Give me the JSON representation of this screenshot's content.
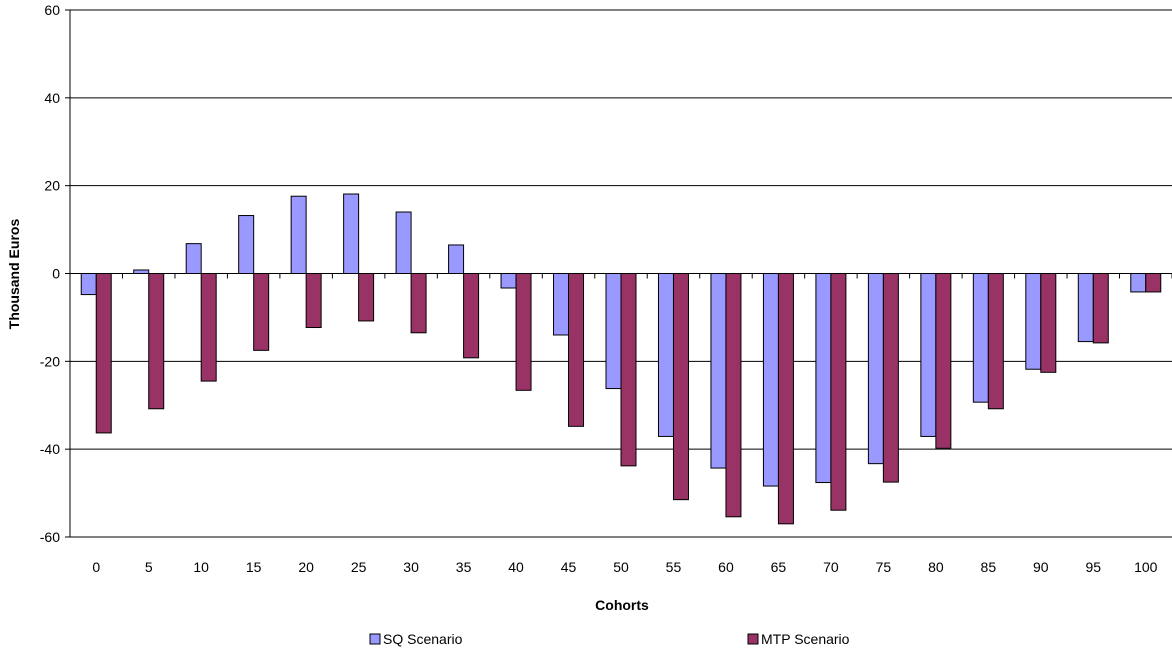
{
  "chart_data": {
    "type": "bar",
    "title": "",
    "xlabel": "Cohorts",
    "ylabel": "Thousand  Euros",
    "ylim": [
      -60,
      60
    ],
    "yticks": [
      -60,
      -40,
      -20,
      0,
      20,
      40,
      60
    ],
    "grid": true,
    "legend_position": "bottom",
    "categories": [
      "0",
      "5",
      "10",
      "15",
      "20",
      "25",
      "30",
      "35",
      "40",
      "45",
      "50",
      "55",
      "60",
      "65",
      "70",
      "75",
      "80",
      "85",
      "90",
      "95",
      "100"
    ],
    "series": [
      {
        "name": "SQ Scenario",
        "color": "#9999ff",
        "values": [
          -4.8,
          0.8,
          6.8,
          13.2,
          17.6,
          18.1,
          14.0,
          6.5,
          -3.3,
          -14.0,
          -26.2,
          -37.1,
          -44.3,
          -48.4,
          -47.6,
          -43.3,
          -37.1,
          -29.3,
          -21.8,
          -15.5,
          -4.2
        ]
      },
      {
        "name": "MTP Scenario",
        "color": "#993366",
        "values": [
          -36.3,
          -30.8,
          -24.5,
          -17.5,
          -12.3,
          -10.8,
          -13.5,
          -19.2,
          -26.6,
          -34.8,
          -43.8,
          -51.5,
          -55.4,
          -57.0,
          -53.9,
          -47.5,
          -39.8,
          -30.8,
          -22.5,
          -15.8,
          -4.2
        ]
      }
    ]
  }
}
